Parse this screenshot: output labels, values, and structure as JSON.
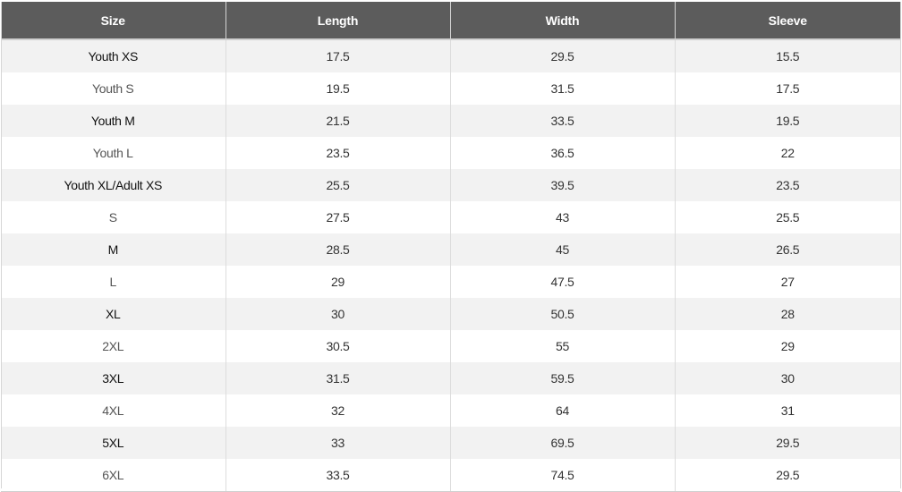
{
  "headers": [
    "Size",
    "Length",
    "Width",
    "Sleeve"
  ],
  "rows": [
    [
      "Youth XS",
      "17.5",
      "29.5",
      "15.5"
    ],
    [
      "Youth S",
      "19.5",
      "31.5",
      "17.5"
    ],
    [
      "Youth M",
      "21.5",
      "33.5",
      "19.5"
    ],
    [
      "Youth L",
      "23.5",
      "36.5",
      "22"
    ],
    [
      "Youth XL/Adult XS",
      "25.5",
      "39.5",
      "23.5"
    ],
    [
      "S",
      "27.5",
      "43",
      "25.5"
    ],
    [
      "M",
      "28.5",
      "45",
      "26.5"
    ],
    [
      "L",
      "29",
      "47.5",
      "27"
    ],
    [
      "XL",
      "30",
      "50.5",
      "28"
    ],
    [
      "2XL",
      "30.5",
      "55",
      "29"
    ],
    [
      "3XL",
      "31.5",
      "59.5",
      "30"
    ],
    [
      "4XL",
      "32",
      "64",
      "31"
    ],
    [
      "5XL",
      "33",
      "69.5",
      "29.5"
    ],
    [
      "6XL",
      "33.5",
      "74.5",
      "29.5"
    ]
  ],
  "colors": {
    "header_bg": "#5c5c5c",
    "header_text": "#ffffff",
    "row_alt_bg": "#f2f2f2",
    "row_bg": "#ffffff"
  }
}
